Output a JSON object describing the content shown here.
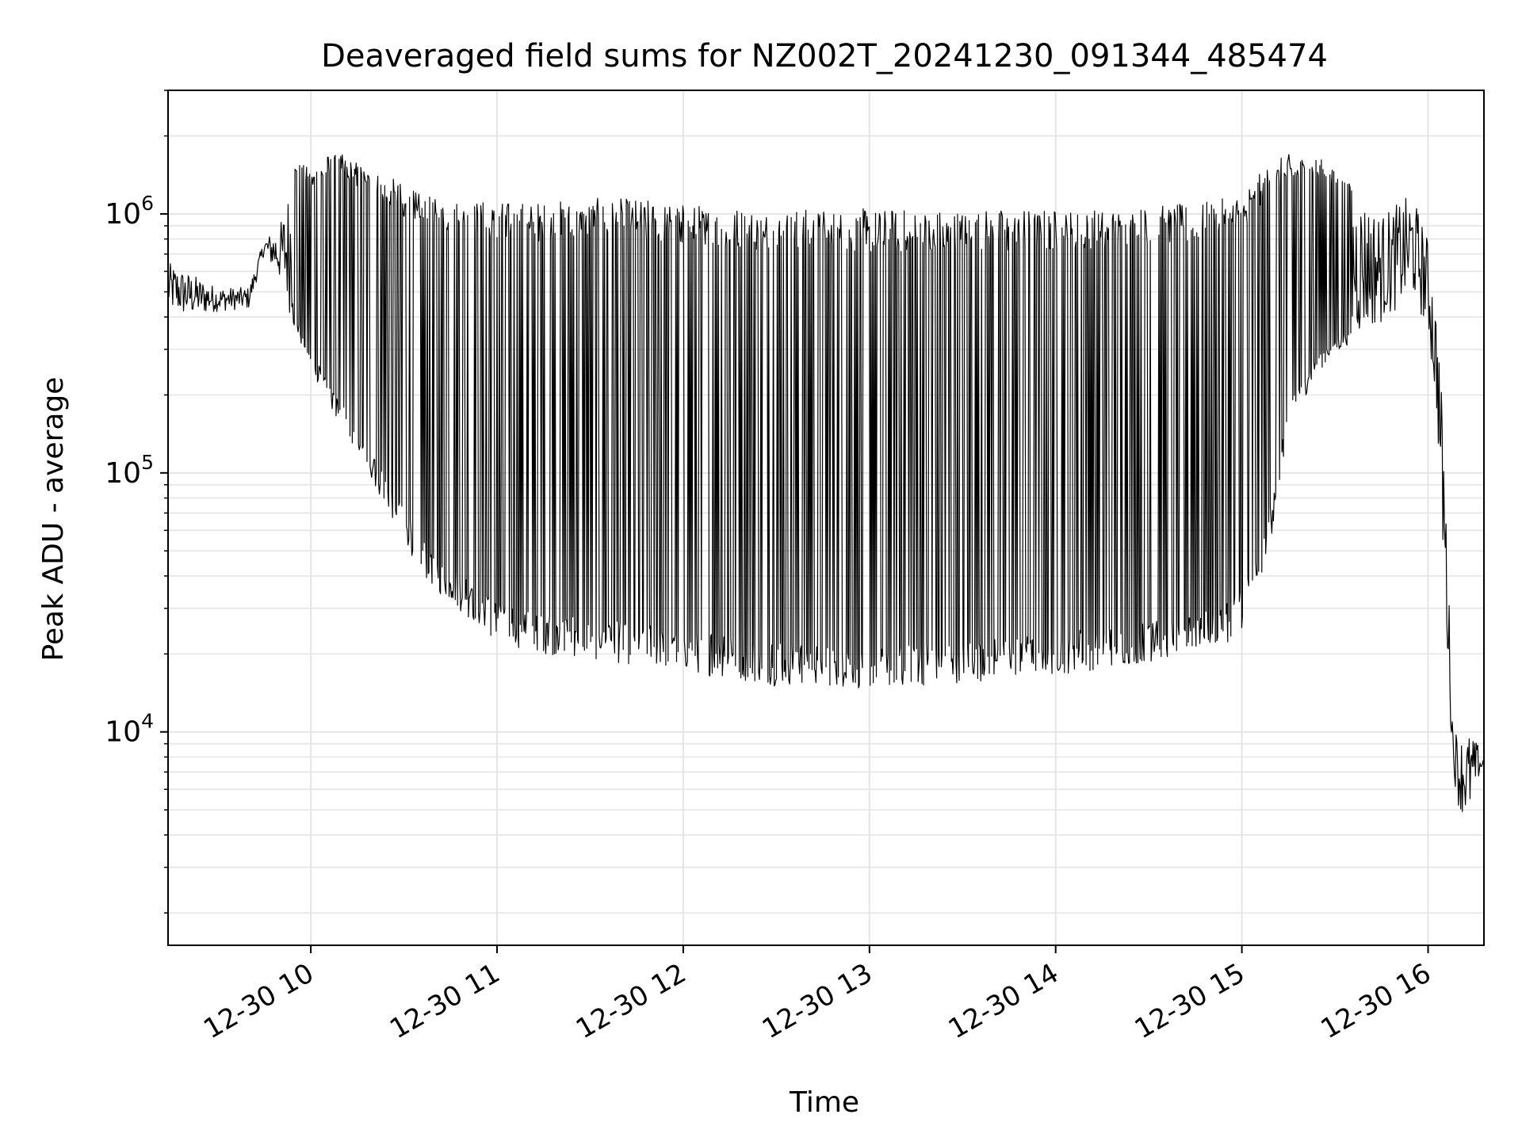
{
  "chart_data": {
    "type": "line",
    "title": "Deaveraged field sums for NZ002T_20241230_091344_485474",
    "xlabel": "Time",
    "ylabel": "Peak ADU - average",
    "yscale": "log",
    "grid": true,
    "line_color": "#000000",
    "grid_color": "#e5e5e5",
    "xlim": [
      "2024-12-30 09:14",
      "2024-12-30 16:18"
    ],
    "ylim": [
      1500,
      3000000
    ],
    "x_ticks": [
      {
        "value": "2024-12-30 10:00",
        "label": "12-30 10"
      },
      {
        "value": "2024-12-30 11:00",
        "label": "12-30 11"
      },
      {
        "value": "2024-12-30 12:00",
        "label": "12-30 12"
      },
      {
        "value": "2024-12-30 13:00",
        "label": "12-30 13"
      },
      {
        "value": "2024-12-30 14:00",
        "label": "12-30 14"
      },
      {
        "value": "2024-12-30 15:00",
        "label": "12-30 15"
      },
      {
        "value": "2024-12-30 16:00",
        "label": "12-30 16"
      }
    ],
    "y_ticks": [
      {
        "value": 10000,
        "base": "10",
        "exp": "4"
      },
      {
        "value": 100000,
        "base": "10",
        "exp": "5"
      },
      {
        "value": 1000000,
        "base": "10",
        "exp": "6"
      }
    ],
    "series": [
      {
        "x": [
          "2024-12-30 09:14",
          "2024-12-30 09:20",
          "2024-12-30 09:30",
          "2024-12-30 09:40",
          "2024-12-30 09:45",
          "2024-12-30 09:50",
          "2024-12-30 09:55",
          "2024-12-30 10:00",
          "2024-12-30 10:05",
          "2024-12-30 10:10",
          "2024-12-30 10:15",
          "2024-12-30 10:20",
          "2024-12-30 10:25",
          "2024-12-30 10:30",
          "2024-12-30 10:35",
          "2024-12-30 10:40",
          "2024-12-30 10:50",
          "2024-12-30 11:00",
          "2024-12-30 11:15",
          "2024-12-30 11:30",
          "2024-12-30 11:45",
          "2024-12-30 12:00",
          "2024-12-30 12:15",
          "2024-12-30 12:30",
          "2024-12-30 12:45",
          "2024-12-30 13:00",
          "2024-12-30 13:15",
          "2024-12-30 13:30",
          "2024-12-30 13:45",
          "2024-12-30 14:00",
          "2024-12-30 14:15",
          "2024-12-30 14:30",
          "2024-12-30 14:45",
          "2024-12-30 14:55",
          "2024-12-30 15:00",
          "2024-12-30 15:05",
          "2024-12-30 15:10",
          "2024-12-30 15:15",
          "2024-12-30 15:25",
          "2024-12-30 15:35",
          "2024-12-30 15:45",
          "2024-12-30 15:55",
          "2024-12-30 16:00",
          "2024-12-30 16:03",
          "2024-12-30 16:05",
          "2024-12-30 16:08",
          "2024-12-30 16:10",
          "2024-12-30 16:13",
          "2024-12-30 16:16",
          "2024-12-30 16:18"
        ],
        "y_low": [
          420000,
          400000,
          420000,
          430000,
          700000,
          550000,
          350000,
          250000,
          190000,
          150000,
          120000,
          90000,
          70000,
          55000,
          42000,
          35000,
          28000,
          22000,
          20000,
          19000,
          18000,
          17000,
          16000,
          15000,
          15000,
          14500,
          15000,
          15500,
          16000,
          16500,
          17500,
          18500,
          20000,
          22000,
          25000,
          35000,
          60000,
          150000,
          250000,
          320000,
          380000,
          480000,
          350000,
          150000,
          40000,
          7000,
          5000,
          4500,
          6500,
          7000
        ],
        "y_high": [
          650000,
          600000,
          520000,
          520000,
          800000,
          900000,
          1600000,
          1500000,
          1700000,
          1700000,
          1600000,
          1500000,
          1400000,
          1300000,
          1200000,
          1150000,
          1150000,
          1120000,
          1120000,
          1150000,
          1150000,
          1100000,
          1080000,
          1050000,
          1050000,
          1050000,
          1050000,
          1050000,
          1050000,
          1050000,
          1050000,
          1080000,
          1100000,
          1150000,
          1250000,
          1400000,
          1600000,
          1700000,
          1650000,
          1300000,
          1000000,
          1200000,
          800000,
          400000,
          150000,
          11000,
          9500,
          10000,
          9000,
          8000
        ]
      }
    ]
  }
}
